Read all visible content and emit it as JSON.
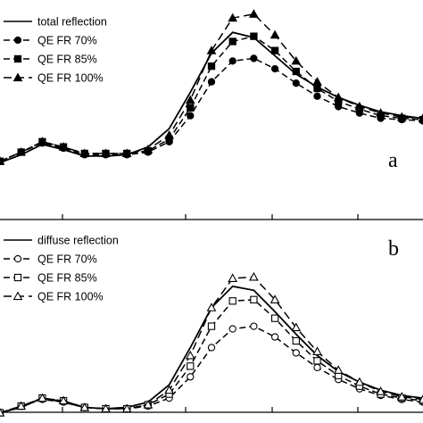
{
  "chart_data": [
    {
      "type": "line",
      "panel_label": "a",
      "x_ticks": [],
      "x": [
        0,
        10,
        20,
        30,
        40,
        50,
        60,
        70,
        80,
        90,
        100,
        110,
        120,
        130,
        140,
        150,
        160,
        170,
        180,
        190,
        200
      ],
      "series": [
        {
          "name": "total reflection",
          "marker": "none",
          "filled": true,
          "values": [
            0.04,
            0.1,
            0.18,
            0.14,
            0.09,
            0.09,
            0.1,
            0.16,
            0.3,
            0.58,
            0.88,
            1.04,
            1.0,
            0.86,
            0.72,
            0.62,
            0.54,
            0.48,
            0.43,
            0.4,
            0.38
          ]
        },
        {
          "name": "QE FR 70%",
          "marker": "circle",
          "filled": true,
          "values": [
            0.05,
            0.12,
            0.19,
            0.15,
            0.1,
            0.1,
            0.1,
            0.12,
            0.2,
            0.4,
            0.66,
            0.82,
            0.84,
            0.76,
            0.65,
            0.55,
            0.47,
            0.42,
            0.38,
            0.37,
            0.36
          ]
        },
        {
          "name": "QE FR 85%",
          "marker": "square",
          "filled": true,
          "values": [
            0.05,
            0.12,
            0.2,
            0.16,
            0.11,
            0.11,
            0.11,
            0.13,
            0.22,
            0.46,
            0.78,
            0.97,
            1.01,
            0.9,
            0.74,
            0.61,
            0.51,
            0.45,
            0.4,
            0.38,
            0.37
          ]
        },
        {
          "name": "QE FR 100%",
          "marker": "triangle",
          "filled": true,
          "values": [
            0.05,
            0.12,
            0.2,
            0.16,
            0.11,
            0.11,
            0.11,
            0.14,
            0.25,
            0.52,
            0.9,
            1.15,
            1.18,
            1.02,
            0.82,
            0.66,
            0.54,
            0.47,
            0.42,
            0.39,
            0.38
          ]
        }
      ]
    },
    {
      "type": "line",
      "panel_label": "b",
      "x_ticks": [],
      "x": [
        0,
        10,
        20,
        30,
        40,
        50,
        60,
        70,
        80,
        90,
        100,
        110,
        120,
        130,
        140,
        150,
        160,
        170,
        180,
        190,
        200
      ],
      "series": [
        {
          "name": "diffuse reflection",
          "marker": "none",
          "filled": false,
          "values": [
            0.01,
            0.05,
            0.12,
            0.09,
            0.05,
            0.04,
            0.05,
            0.09,
            0.22,
            0.5,
            0.8,
            0.96,
            0.93,
            0.77,
            0.6,
            0.44,
            0.32,
            0.24,
            0.18,
            0.14,
            0.12
          ]
        },
        {
          "name": "QE FR 70%",
          "marker": "circle",
          "filled": false,
          "values": [
            0.01,
            0.06,
            0.11,
            0.09,
            0.05,
            0.04,
            0.04,
            0.06,
            0.12,
            0.28,
            0.5,
            0.64,
            0.66,
            0.58,
            0.46,
            0.35,
            0.26,
            0.19,
            0.14,
            0.11,
            0.09
          ]
        },
        {
          "name": "QE FR 85%",
          "marker": "square",
          "filled": false,
          "values": [
            0.01,
            0.06,
            0.12,
            0.1,
            0.05,
            0.04,
            0.04,
            0.07,
            0.15,
            0.36,
            0.66,
            0.85,
            0.86,
            0.72,
            0.55,
            0.4,
            0.29,
            0.21,
            0.15,
            0.12,
            0.1
          ]
        },
        {
          "name": "QE FR 100%",
          "marker": "triangle",
          "filled": false,
          "values": [
            0.01,
            0.06,
            0.12,
            0.1,
            0.05,
            0.04,
            0.04,
            0.07,
            0.18,
            0.44,
            0.8,
            1.02,
            1.03,
            0.86,
            0.65,
            0.47,
            0.33,
            0.24,
            0.17,
            0.13,
            0.11
          ]
        }
      ]
    }
  ]
}
